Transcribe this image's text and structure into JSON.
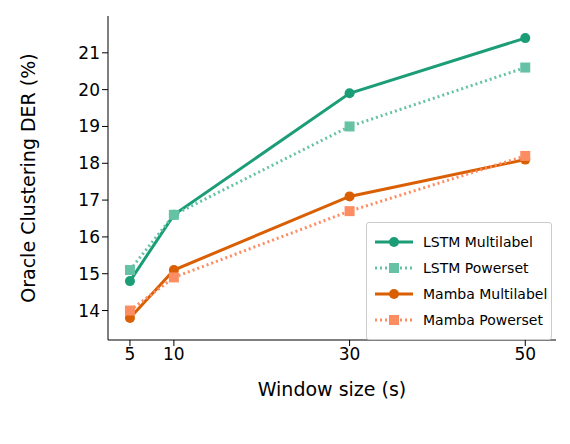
{
  "chart_data": {
    "type": "line",
    "x_label": "Window size (s)",
    "y_label": "Oracle Clustering DER (%)",
    "x": [
      5,
      10,
      30,
      50
    ],
    "xlim": [
      2.5,
      53.5
    ],
    "xticks": [
      5,
      10,
      30,
      50
    ],
    "ylim": [
      13.2,
      22
    ],
    "yticks": [
      14,
      15,
      16,
      17,
      18,
      19,
      20,
      21
    ],
    "grid": false,
    "legend": "lower right",
    "series": [
      {
        "name": "LSTM Multilabel",
        "color": "#1b9e77",
        "marker": "circle",
        "line_style": "solid",
        "values": [
          14.8,
          16.6,
          19.9,
          21.4
        ]
      },
      {
        "name": "LSTM Powerset",
        "color": "#66c2a5",
        "marker": "square",
        "line_style": "dotted",
        "values": [
          15.1,
          16.6,
          19.0,
          20.6
        ]
      },
      {
        "name": "Mamba Multilabel",
        "color": "#d95f02",
        "marker": "circle",
        "line_style": "solid",
        "values": [
          13.8,
          15.1,
          17.1,
          18.1
        ]
      },
      {
        "name": "Mamba Powerset",
        "color": "#fc8d62",
        "marker": "square",
        "line_style": "dotted",
        "values": [
          14.0,
          14.9,
          16.7,
          18.2
        ]
      }
    ]
  }
}
